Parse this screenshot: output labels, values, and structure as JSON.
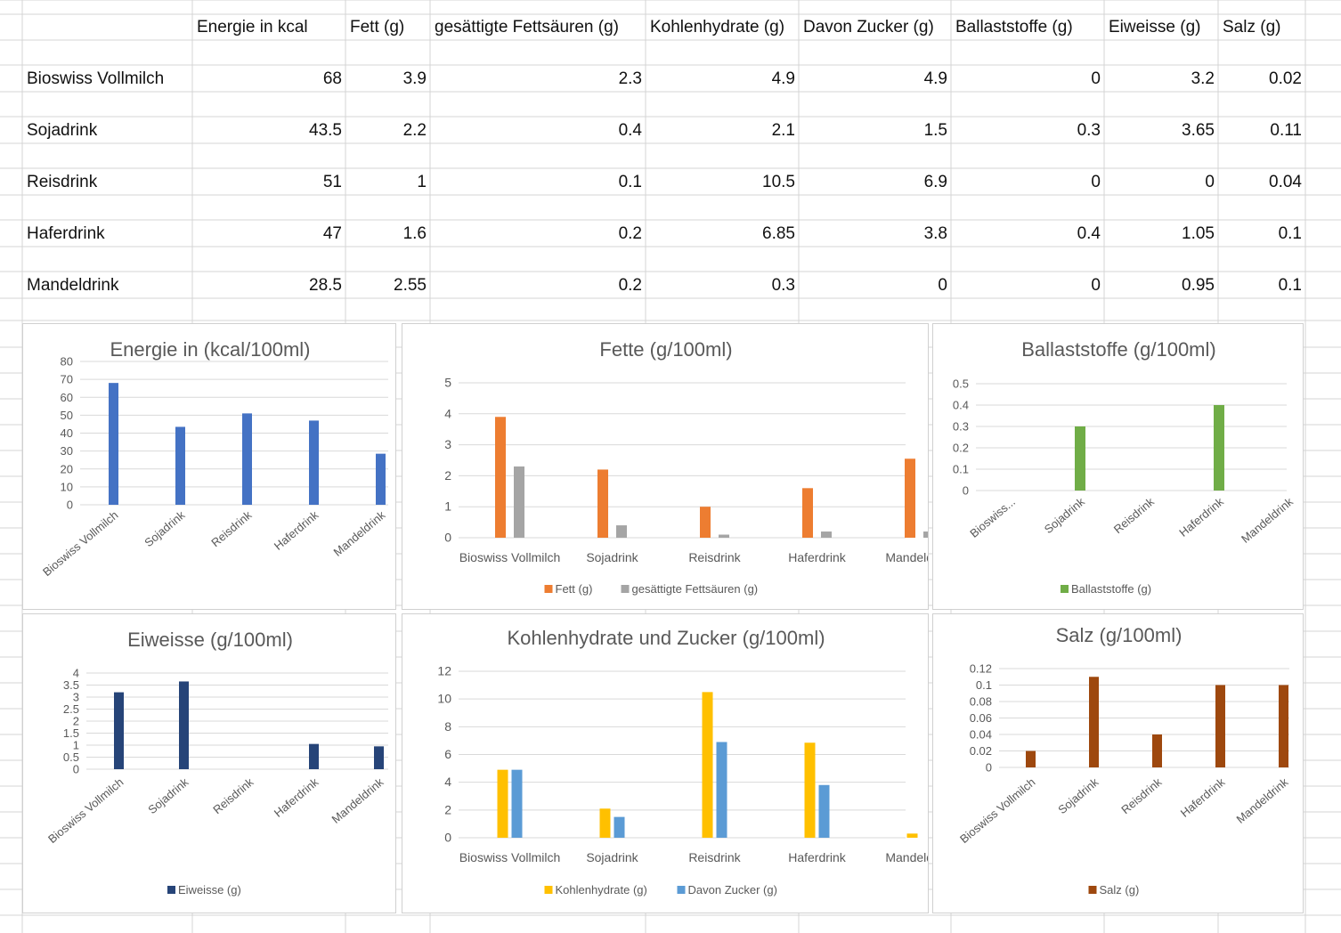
{
  "table": {
    "headers": [
      "",
      "Energie in kcal",
      "Fett (g)",
      "gesättigte Fettsäuren (g)",
      "Kohlenhydrate (g)",
      "Davon Zucker (g)",
      "Ballaststoffe (g)",
      "Eiweisse (g)",
      "Salz (g)"
    ],
    "rows": [
      {
        "name": "Bioswiss Vollmilch",
        "values": [
          "68",
          "3.9",
          "2.3",
          "4.9",
          "4.9",
          "0",
          "3.2",
          "0.02"
        ]
      },
      {
        "name": "Sojadrink",
        "values": [
          "43.5",
          "2.2",
          "0.4",
          "2.1",
          "1.5",
          "0.3",
          "3.65",
          "0.11"
        ]
      },
      {
        "name": "Reisdrink",
        "values": [
          "51",
          "1",
          "0.1",
          "10.5",
          "6.9",
          "0",
          "0",
          "0.04"
        ]
      },
      {
        "name": "Haferdrink",
        "values": [
          "47",
          "1.6",
          "0.2",
          "6.85",
          "3.8",
          "0.4",
          "1.05",
          "0.1"
        ]
      },
      {
        "name": "Mandeldrink",
        "values": [
          "28.5",
          "2.55",
          "0.2",
          "0.3",
          "0",
          "0",
          "0.95",
          "0.1"
        ]
      }
    ]
  },
  "colors": {
    "energie": "#4472c4",
    "fett": "#ed7d31",
    "gesaettigt": "#a5a5a5",
    "ballast": "#70ad47",
    "eiweiss": "#264478",
    "kohlenhydrate": "#ffc000",
    "zucker": "#5b9bd5",
    "salz": "#9e480e",
    "gridline": "#d9d9d9",
    "text": "#595959"
  },
  "chart_data": [
    {
      "id": "energie",
      "type": "bar",
      "title": "Energie in (kcal/100ml)",
      "categories": [
        "Bioswiss Vollmilch",
        "Sojadrink",
        "Reisdrink",
        "Haferdrink",
        "Mandeldrink"
      ],
      "series": [
        {
          "values": [
            68,
            43.5,
            51,
            47,
            28.5
          ],
          "color": "#4472c4"
        }
      ],
      "ylim": [
        0,
        80
      ],
      "yticks": [
        "0",
        "10",
        "20",
        "30",
        "40",
        "50",
        "60",
        "70",
        "80"
      ],
      "xlabel_rotation": "rotated",
      "grid": true,
      "legend": "none"
    },
    {
      "id": "fette",
      "type": "bar",
      "title": "Fette (g/100ml)",
      "categories": [
        "Bioswiss Vollmilch",
        "Sojadrink",
        "Reisdrink",
        "Haferdrink",
        "Mandeldrink"
      ],
      "series": [
        {
          "name": "Fett (g)",
          "values": [
            3.9,
            2.2,
            1,
            1.6,
            2.55
          ],
          "color": "#ed7d31"
        },
        {
          "name": "gesättigte Fettsäuren (g)",
          "values": [
            2.3,
            0.4,
            0.1,
            0.2,
            0.2
          ],
          "color": "#a5a5a5"
        }
      ],
      "ylim": [
        0,
        5
      ],
      "yticks": [
        "0",
        "1",
        "2",
        "3",
        "4",
        "5"
      ],
      "xlabel_rotation": "horizontal",
      "grid": true,
      "legend": "bottom"
    },
    {
      "id": "ballast",
      "type": "bar",
      "title": "Ballaststoffe (g/100ml)",
      "categories": [
        "Bioswiss...",
        "Sojadrink",
        "Reisdrink",
        "Haferdrink",
        "Mandeldrink"
      ],
      "series": [
        {
          "name": "Ballaststoffe (g)",
          "values": [
            0,
            0.3,
            0,
            0.4,
            0
          ],
          "color": "#70ad47"
        }
      ],
      "ylim": [
        0,
        0.5
      ],
      "yticks": [
        "0",
        "0.1",
        "0.2",
        "0.3",
        "0.4",
        "0.5"
      ],
      "xlabel_rotation": "rotated",
      "grid": true,
      "legend": "bottom"
    },
    {
      "id": "eiweiss",
      "type": "bar",
      "title": "Eiweisse (g/100ml)",
      "categories": [
        "Bioswiss Vollmilch",
        "Sojadrink",
        "Reisdrink",
        "Haferdrink",
        "Mandeldrink"
      ],
      "series": [
        {
          "name": "Eiweisse (g)",
          "values": [
            3.2,
            3.65,
            0,
            1.05,
            0.95
          ],
          "color": "#264478"
        }
      ],
      "ylim": [
        0,
        4
      ],
      "yticks": [
        "0",
        "0.5",
        "1",
        "1.5",
        "2",
        "2.5",
        "3",
        "3.5",
        "4"
      ],
      "xlabel_rotation": "rotated",
      "grid": true,
      "legend": "bottom"
    },
    {
      "id": "kohlenhydrate",
      "type": "bar",
      "title": "Kohlenhydrate und Zucker (g/100ml)",
      "categories": [
        "Bioswiss Vollmilch",
        "Sojadrink",
        "Reisdrink",
        "Haferdrink",
        "Mandeldrink"
      ],
      "series": [
        {
          "name": "Kohlenhydrate (g)",
          "values": [
            4.9,
            2.1,
            10.5,
            6.85,
            0.3
          ],
          "color": "#ffc000"
        },
        {
          "name": "Davon Zucker (g)",
          "values": [
            4.9,
            1.5,
            6.9,
            3.8,
            0
          ],
          "color": "#5b9bd5"
        }
      ],
      "ylim": [
        0,
        12
      ],
      "yticks": [
        "0",
        "2",
        "4",
        "6",
        "8",
        "10",
        "12"
      ],
      "xlabel_rotation": "horizontal",
      "grid": true,
      "legend": "bottom"
    },
    {
      "id": "salz",
      "type": "bar",
      "title": "Salz (g/100ml)",
      "categories": [
        "Bioswiss Vollmilch",
        "Sojadrink",
        "Reisdrink",
        "Haferdrink",
        "Mandeldrink"
      ],
      "series": [
        {
          "name": "Salz (g)",
          "values": [
            0.02,
            0.11,
            0.04,
            0.1,
            0.1
          ],
          "color": "#9e480e"
        }
      ],
      "ylim": [
        0,
        0.12
      ],
      "yticks": [
        "0",
        "0.02",
        "0.04",
        "0.06",
        "0.08",
        "0.1",
        "0.12"
      ],
      "xlabel_rotation": "rotated",
      "grid": true,
      "legend": "bottom"
    }
  ]
}
